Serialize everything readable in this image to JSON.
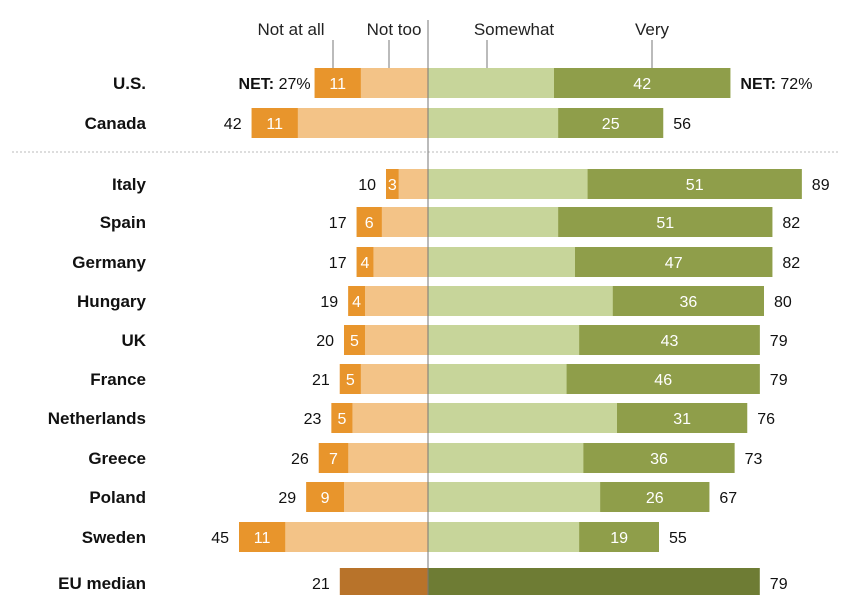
{
  "chart_data": {
    "type": "bar",
    "orientation": "horizontal-diverging",
    "legend": {
      "not_at_all": "Not at all",
      "not_too": "Not too",
      "somewhat": "Somewhat",
      "very": "Very"
    },
    "net_label": "NET:",
    "colors": {
      "not_at_all": "#e8952c",
      "not_too": "#f3c387",
      "somewhat": "#c7d59a",
      "very": "#8f9e4a",
      "median_negative": "#b8732a",
      "median_positive": "#6e7c34"
    },
    "rows": [
      {
        "country": "U.S.",
        "not_at_all": 11,
        "negative_net": 27,
        "very": 42,
        "positive_net": 72,
        "negative_label": "27%",
        "positive_label": "72%",
        "net_labeled": true
      },
      {
        "country": "Canada",
        "not_at_all": 11,
        "negative_net": 42,
        "very": 25,
        "positive_net": 56
      },
      {
        "country": "Italy",
        "not_at_all": 3,
        "negative_net": 10,
        "very": 51,
        "positive_net": 89
      },
      {
        "country": "Spain",
        "not_at_all": 6,
        "negative_net": 17,
        "very": 51,
        "positive_net": 82
      },
      {
        "country": "Germany",
        "not_at_all": 4,
        "negative_net": 17,
        "very": 47,
        "positive_net": 82
      },
      {
        "country": "Hungary",
        "not_at_all": 4,
        "negative_net": 19,
        "very": 36,
        "positive_net": 80
      },
      {
        "country": "UK",
        "not_at_all": 5,
        "negative_net": 20,
        "very": 43,
        "positive_net": 79
      },
      {
        "country": "France",
        "not_at_all": 5,
        "negative_net": 21,
        "very": 46,
        "positive_net": 79
      },
      {
        "country": "Netherlands",
        "not_at_all": 5,
        "negative_net": 23,
        "very": 31,
        "positive_net": 76
      },
      {
        "country": "Greece",
        "not_at_all": 7,
        "negative_net": 26,
        "very": 36,
        "positive_net": 73
      },
      {
        "country": "Poland",
        "not_at_all": 9,
        "negative_net": 29,
        "very": 26,
        "positive_net": 67
      },
      {
        "country": "Sweden",
        "not_at_all": 11,
        "negative_net": 45,
        "very": 19,
        "positive_net": 55
      },
      {
        "country": "EU median",
        "negative_net": 21,
        "positive_net": 79,
        "median": true
      }
    ]
  }
}
